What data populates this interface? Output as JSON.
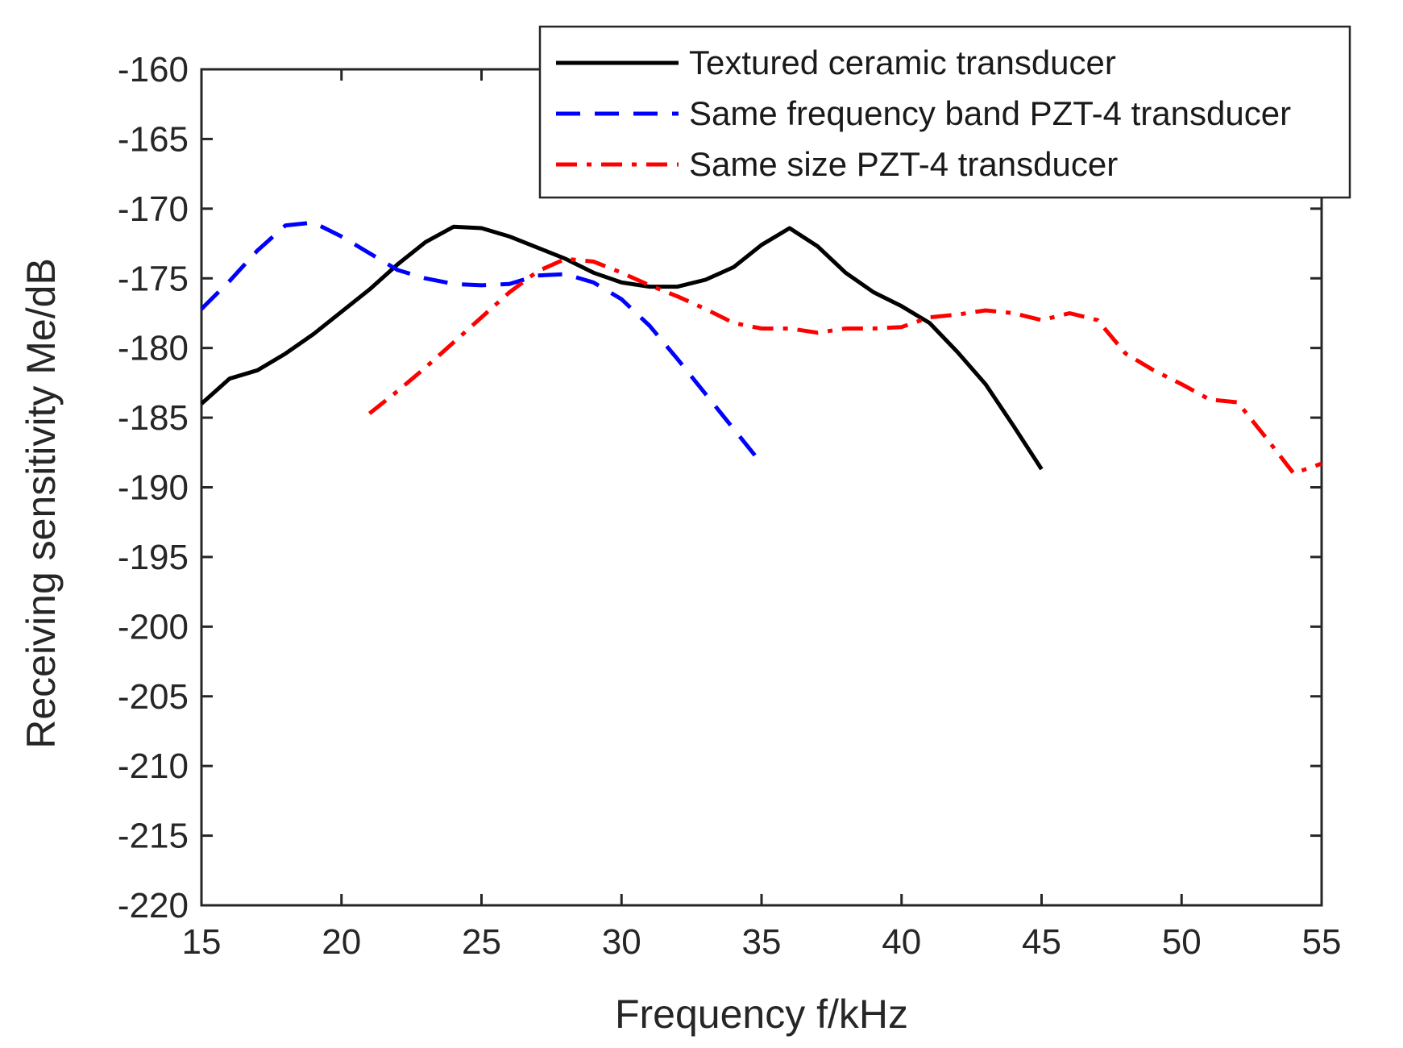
{
  "chart_data": {
    "type": "line",
    "title": "",
    "xlabel": "Frequency f/kHz",
    "ylabel": "Receiving sensitivity Me/dB",
    "xlim": [
      15,
      55
    ],
    "ylim": [
      -220,
      -160
    ],
    "xticks": [
      15,
      20,
      25,
      30,
      35,
      40,
      45,
      50,
      55
    ],
    "yticks": [
      -160,
      -165,
      -170,
      -175,
      -180,
      -185,
      -190,
      -195,
      -200,
      -205,
      -210,
      -215,
      -220
    ],
    "grid": false,
    "legend_position": "top-right",
    "series": [
      {
        "name": "Textured ceramic transducer",
        "color": "#000000",
        "style": "solid",
        "x": [
          15,
          16,
          17,
          18,
          19,
          20,
          21,
          22,
          23,
          24,
          25,
          26,
          27,
          28,
          29,
          30,
          31,
          32,
          33,
          34,
          35,
          36,
          37,
          38,
          39,
          40,
          41,
          42,
          43,
          44,
          45
        ],
        "y": [
          -184,
          -182.2,
          -181.6,
          -180.4,
          -179,
          -177.4,
          -175.8,
          -174,
          -172.4,
          -171.3,
          -171.4,
          -172,
          -172.8,
          -173.6,
          -174.6,
          -175.3,
          -175.6,
          -175.6,
          -175.1,
          -174.2,
          -172.6,
          -171.4,
          -172.7,
          -174.6,
          -176,
          -177,
          -178.2,
          -180.3,
          -182.6,
          -185.6,
          -188.7
        ]
      },
      {
        "name": "Same frequency band PZT-4 transducer",
        "color": "#0000ff",
        "style": "dashed",
        "x": [
          15,
          16,
          17,
          18,
          19,
          20,
          21,
          22,
          23,
          24,
          25,
          26,
          27,
          28,
          29,
          30,
          31,
          32,
          33,
          34,
          35
        ],
        "y": [
          -177.2,
          -175.2,
          -173,
          -171.2,
          -171,
          -172,
          -173.2,
          -174.4,
          -175,
          -175.4,
          -175.5,
          -175.4,
          -174.8,
          -174.7,
          -175.3,
          -176.5,
          -178.4,
          -180.8,
          -183.3,
          -185.8,
          -188.3
        ]
      },
      {
        "name": "Same size PZT-4 transducer",
        "color": "#ff0000",
        "style": "dashdot",
        "x": [
          21,
          22,
          23,
          24,
          25,
          26,
          27,
          28,
          29,
          30,
          31,
          32,
          33,
          34,
          35,
          36,
          37,
          38,
          39,
          40,
          41,
          42,
          43,
          44,
          45,
          46,
          47,
          48,
          49,
          50,
          51,
          52,
          53,
          54,
          55
        ],
        "y": [
          -184.7,
          -183.1,
          -181.4,
          -179.6,
          -177.8,
          -176,
          -174.5,
          -173.6,
          -173.8,
          -174.6,
          -175.5,
          -176.3,
          -177.2,
          -178.2,
          -178.6,
          -178.6,
          -178.9,
          -178.6,
          -178.6,
          -178.5,
          -177.8,
          -177.6,
          -177.3,
          -177.5,
          -178,
          -177.5,
          -178,
          -180.4,
          -181.6,
          -182.6,
          -183.7,
          -183.9,
          -186.4,
          -189,
          -188.3
        ]
      }
    ]
  }
}
